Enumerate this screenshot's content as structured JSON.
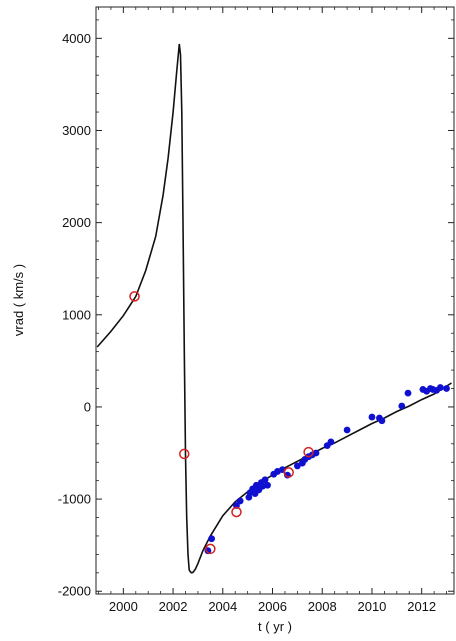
{
  "chart_data": {
    "type": "scatter",
    "xlabel": "t ( yr )",
    "ylabel": "vrad ( km/s )",
    "xlim": [
      1998.9,
      2013.3
    ],
    "ylim": [
      -2030,
      4340
    ],
    "x_ticks": [
      2000,
      2002,
      2004,
      2006,
      2008,
      2010,
      2012
    ],
    "y_ticks": [
      -2000,
      -1000,
      0,
      1000,
      2000,
      3000,
      4000
    ],
    "x_tick_labels": [
      "2000",
      "2002",
      "2004",
      "2006",
      "2008",
      "2010",
      "2012"
    ],
    "y_tick_labels": [
      "-2000",
      "-1000",
      "0",
      "1000",
      "2000",
      "3000",
      "4000"
    ],
    "grid": false,
    "colors": {
      "curve": "#111111",
      "blue_points": "#1010d0",
      "red_points": "#d42020",
      "axes": "#222222"
    },
    "series": [
      {
        "style": "line",
        "x": [
          1998.95,
          1999.5,
          2000.0,
          2000.5,
          2000.9,
          2001.3,
          2001.6,
          2001.8,
          2002.0,
          2002.15,
          2002.25,
          2002.3,
          2002.35,
          2002.4,
          2002.45,
          2002.5,
          2002.55,
          2002.6,
          2002.65,
          2002.7,
          2002.75,
          2002.8,
          2002.9,
          2003.0,
          2003.2,
          2003.5,
          2004.0,
          2004.5,
          2005.0,
          2005.5,
          2006.0,
          2006.5,
          2007.0,
          2007.5,
          2008.0,
          2008.5,
          2009.0,
          2009.5,
          2010.0,
          2010.5,
          2011.0,
          2011.5,
          2012.0,
          2012.5,
          2013.2
        ],
        "y": [
          650,
          820,
          990,
          1200,
          1480,
          1850,
          2300,
          2700,
          3200,
          3650,
          3940,
          3820,
          3200,
          2000,
          600,
          -520,
          -1200,
          -1600,
          -1770,
          -1790,
          -1800,
          -1795,
          -1760,
          -1700,
          -1560,
          -1400,
          -1180,
          -1030,
          -920,
          -820,
          -740,
          -660,
          -590,
          -520,
          -450,
          -390,
          -320,
          -250,
          -180,
          -120,
          -50,
          10,
          80,
          140,
          260
        ]
      },
      {
        "style": "points",
        "marker": "filled-circle",
        "x": [
          2003.4,
          2003.55,
          2004.55,
          2004.7,
          2005.05,
          2005.1,
          2005.2,
          2005.3,
          2005.35,
          2005.45,
          2005.55,
          2005.6,
          2005.7,
          2005.8,
          2006.05,
          2006.2,
          2006.4,
          2006.6,
          2007.0,
          2007.2,
          2007.3,
          2007.45,
          2007.6,
          2007.75,
          2008.2,
          2008.35,
          2009.0,
          2010.0,
          2010.3,
          2010.4,
          2011.2,
          2011.45,
          2012.05,
          2012.2,
          2012.35,
          2012.45,
          2012.6,
          2012.75,
          2013.0
        ],
        "y": [
          -1560,
          -1430,
          -1070,
          -1020,
          -980,
          -930,
          -890,
          -940,
          -850,
          -900,
          -820,
          -860,
          -790,
          -850,
          -730,
          -700,
          -680,
          -740,
          -640,
          -610,
          -570,
          -540,
          -520,
          -500,
          -420,
          -380,
          -250,
          -110,
          -120,
          -150,
          10,
          150,
          190,
          170,
          200,
          190,
          180,
          210,
          200
        ]
      },
      {
        "style": "points",
        "marker": "open-circle",
        "x": [
          2000.45,
          2002.45,
          2003.5,
          2004.55,
          2006.65,
          2007.45
        ],
        "y": [
          1200,
          -510,
          -1540,
          -1140,
          -710,
          -490
        ]
      }
    ]
  }
}
